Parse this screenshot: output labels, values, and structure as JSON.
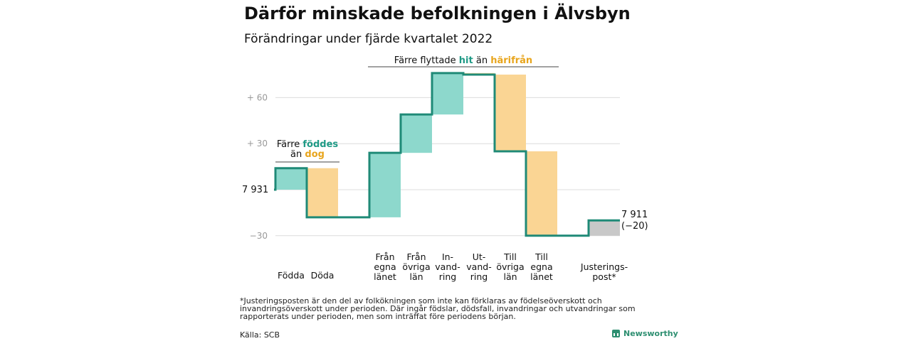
{
  "title": "Därför minskade befolkningen i Älvsbyn",
  "subtitle": "Förändringar under fjärde kvartalet 2022",
  "colors": {
    "increase": "#8dd8cc",
    "decrease": "#fad594",
    "adjustment": "#c8c8c8",
    "line": "#1f8a77",
    "teal_text": "#1f9a86",
    "orange_text": "#e8a51d",
    "grid": "#dcdcdc",
    "tick": "#999999"
  },
  "annotations": {
    "birth": {
      "prefix": "Färre ",
      "teal": "föddes",
      "line2_prefix": "än ",
      "orange": "dog"
    },
    "migration": {
      "prefix": "Färre flyttade ",
      "teal": "hit",
      "middle": " än ",
      "orange": "härifrån"
    }
  },
  "chart_data": {
    "type": "waterfall",
    "start_label": "7 931",
    "end_label": "7 911",
    "end_change": "(−20)",
    "y_ticks": [
      {
        "value": 60,
        "label": "+ 60"
      },
      {
        "value": 30,
        "label": "+ 30"
      },
      {
        "value": 0,
        "label": ""
      },
      {
        "value": -30,
        "label": "−30"
      }
    ],
    "ylim": [
      -33,
      78
    ],
    "categories": [
      {
        "label": [
          "Födda"
        ],
        "from": 0,
        "to": 14,
        "kind": "increase"
      },
      {
        "label": [
          "Döda"
        ],
        "from": 14,
        "to": -18,
        "kind": "decrease"
      },
      {
        "label": [
          "Från",
          "egna",
          "länet"
        ],
        "from": -18,
        "to": 24,
        "kind": "increase"
      },
      {
        "label": [
          "Från",
          "övriga",
          "län"
        ],
        "from": 24,
        "to": 49,
        "kind": "increase"
      },
      {
        "label": [
          "In-",
          "vand-",
          "ring"
        ],
        "from": 49,
        "to": 76,
        "kind": "increase"
      },
      {
        "label": [
          "Ut-",
          "vand-",
          "ring"
        ],
        "from": 76,
        "to": 75,
        "kind": "decrease"
      },
      {
        "label": [
          "Till",
          "övriga",
          "län"
        ],
        "from": 75,
        "to": 25,
        "kind": "decrease"
      },
      {
        "label": [
          "Till",
          "egna",
          "länet"
        ],
        "from": 25,
        "to": -30,
        "kind": "decrease"
      },
      {
        "label": [
          "Justerings-",
          "post*"
        ],
        "from": -30,
        "to": -20,
        "kind": "adjustment"
      }
    ]
  },
  "footnote": "*Justeringsposten är den del av folkökningen som inte kan förklaras av födelseöverskott och invandringsöverskott under perioden. Där ingår födslar, dödsfall, invandringar och utvandringar som rapporterats under perioden, men som inträffat före periodens början.",
  "source": "Källa: SCB",
  "brand": "Newsworthy"
}
